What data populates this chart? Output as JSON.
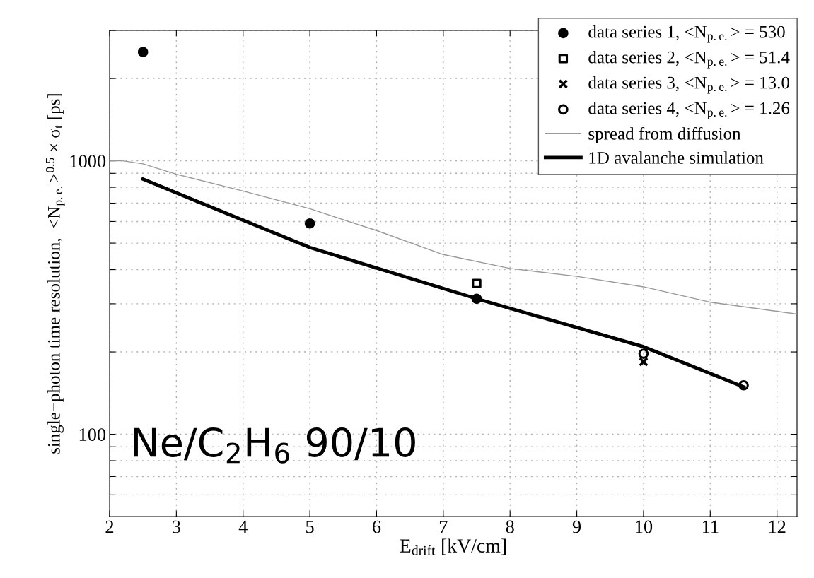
{
  "chart_data": {
    "type": "scatter",
    "xlabel": "E$_{drift}$ [kV/cm]",
    "ylabel": "single−photon time resolution,  <N$_{p.e.}$>$^{0.5}$ × σ$_{t}$ [ps]",
    "annotations": [
      "Ne/C$_{2}$H$_{6}$ 90/10"
    ],
    "log": "y",
    "grid": true,
    "legend": "top right",
    "xlim": [
      2,
      12.3
    ],
    "xticks": [
      2,
      3,
      4,
      5,
      6,
      7,
      8,
      9,
      10,
      11,
      12
    ],
    "ylim": [
      50,
      3000
    ],
    "yticks": [
      {
        "value": 60,
        "label": null
      },
      {
        "value": 70,
        "label": null
      },
      {
        "value": 80,
        "label": null
      },
      {
        "value": 90,
        "label": null
      },
      100,
      {
        "value": 200,
        "label": null
      },
      {
        "value": 300,
        "label": null
      },
      {
        "value": 400,
        "label": null
      },
      {
        "value": 500,
        "label": null
      },
      {
        "value": 600,
        "label": null
      },
      {
        "value": 700,
        "label": null
      },
      {
        "value": 800,
        "label": null
      },
      {
        "value": 900,
        "label": null
      },
      1000,
      {
        "value": 2000,
        "label": null
      },
      {
        "value": 3000,
        "label": null
      }
    ],
    "series": [
      {
        "name": "data series 1, <N$_{p.e.}$> = 530",
        "marker": "circle",
        "color": "#000000",
        "x": [
          2.5,
          5,
          7.5
        ],
        "values": [
          2500,
          590,
          313
        ]
      },
      {
        "name": "data series 2, <N$_{p.e.}$> = 51.4",
        "marker": "square",
        "color": "#000000",
        "x": [
          7.5
        ],
        "values": [
          356
        ]
      },
      {
        "name": "data series 3, <N$_{p.e.}$> = 13.0",
        "marker": "cross",
        "color": "#000000",
        "x": [
          10
        ],
        "values": [
          184
        ]
      },
      {
        "name": "data series 4, <N$_{p.e.}$> = 1.26",
        "marker": "circle",
        "color": "#000000",
        "x": [
          10,
          11.5
        ],
        "values": [
          197,
          151
        ]
      },
      {
        "name": "spread from diffusion",
        "type": "line",
        "marker": "none",
        "color": "#999999",
        "x": [
          2,
          2.2,
          2.5,
          3,
          4,
          5,
          6,
          7,
          8,
          9,
          10,
          11,
          12.3
        ],
        "values": [
          1000,
          1000,
          975,
          893,
          775,
          668,
          556,
          454,
          404,
          378,
          346,
          304,
          275
        ]
      },
      {
        "name": "1D avalanche simulation",
        "type": "line",
        "marker": "none",
        "color": "#000000",
        "x": [
          2.5,
          5,
          7.5,
          10,
          11.5
        ],
        "values": [
          857,
          482,
          313,
          209,
          149
        ]
      }
    ]
  }
}
